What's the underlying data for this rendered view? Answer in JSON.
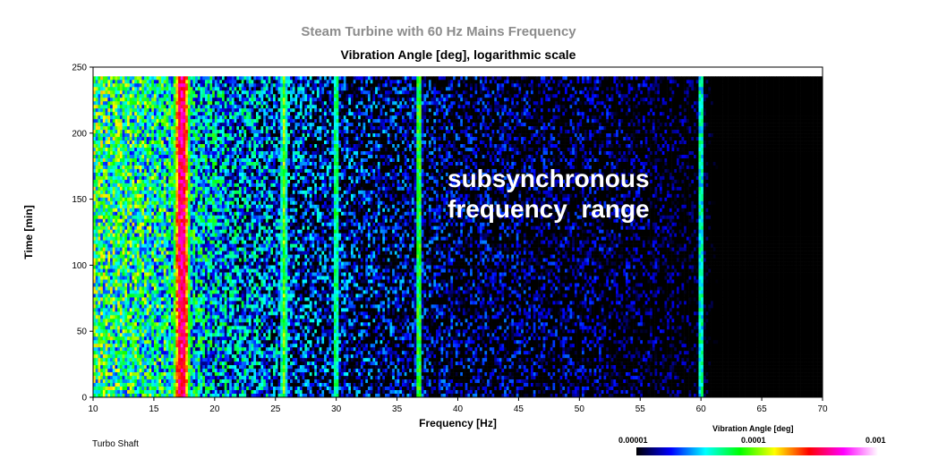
{
  "suptitle": "Steam Turbine with 60 Hz Mains Frequency",
  "chart_data": {
    "type": "heatmap",
    "title": "Vibration Angle [deg], logarithmic scale",
    "xlabel": "Frequency [Hz]",
    "ylabel": "Time [min]",
    "xlim": [
      10,
      70
    ],
    "ylim": [
      0,
      250
    ],
    "data_time_extent": [
      0,
      243
    ],
    "x_ticks": [
      10,
      15,
      20,
      25,
      30,
      35,
      40,
      45,
      50,
      55,
      60,
      65,
      70
    ],
    "y_ticks": [
      0,
      50,
      100,
      150,
      200,
      250
    ],
    "background_floor_deg": [
      {
        "hz": 10,
        "value": 6e-05
      },
      {
        "hz": 15,
        "value": 5e-05
      },
      {
        "hz": 20,
        "value": 3e-05
      },
      {
        "hz": 25,
        "value": 2e-05
      },
      {
        "hz": 30,
        "value": 1.4e-05
      },
      {
        "hz": 40,
        "value": 1e-05
      },
      {
        "hz": 55,
        "value": 8e-06
      },
      {
        "hz": 60,
        "value": 6e-06
      },
      {
        "hz": 62,
        "value": 3e-06
      },
      {
        "hz": 70,
        "value": 2e-06
      }
    ],
    "spectral_lines": [
      {
        "frequency_hz": 17.3,
        "peak_value_deg": 0.0004
      },
      {
        "frequency_hz": 25.7,
        "peak_value_deg": 9e-05
      },
      {
        "frequency_hz": 30.0,
        "peak_value_deg": 6e-05
      },
      {
        "frequency_hz": 36.8,
        "peak_value_deg": 8e-05
      },
      {
        "frequency_hz": 60.0,
        "peak_value_deg": 5e-05
      }
    ],
    "annotation": "subsynchronous\nfrequency  range",
    "colorbar": {
      "label": "Vibration Angle [deg]",
      "scale": "log",
      "ticks": [
        "0.00001",
        "0.0001",
        "0.001"
      ],
      "colors": [
        "#000000",
        "#0000ff",
        "#00ffff",
        "#00ff00",
        "#ffff00",
        "#ff0000",
        "#ff00ff",
        "#ffffff"
      ]
    }
  },
  "footer_label": "Turbo Shaft"
}
